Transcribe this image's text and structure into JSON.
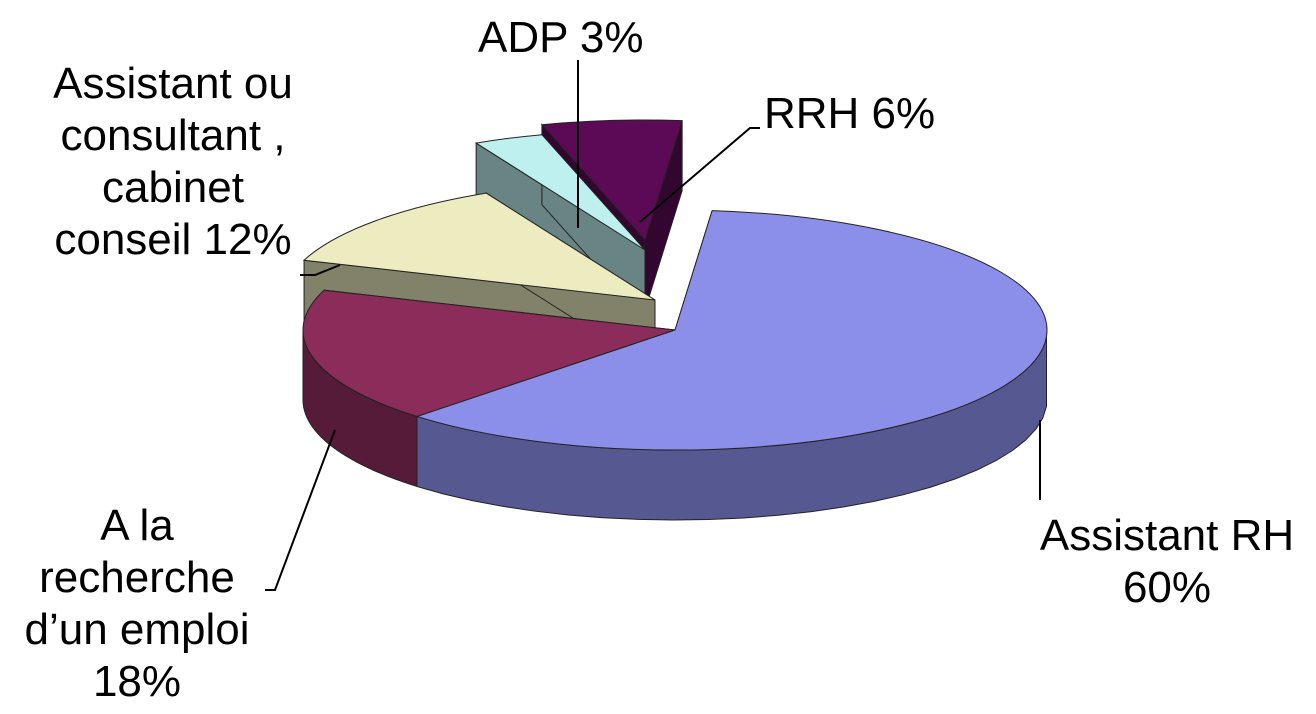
{
  "chart_data": {
    "type": "pie",
    "style": "3d-exploded",
    "slices": [
      {
        "name": "Assistant RH",
        "value": 60,
        "color": "#8B8FEA",
        "label_lines": [
          "Assistant RH",
          "60%"
        ]
      },
      {
        "name": "A la recherche d'un emploi",
        "value": 18,
        "color": "#8B2C5A",
        "label_lines": [
          "A la",
          "recherche",
          "d’un emploi",
          "18%"
        ]
      },
      {
        "name": "Assistant ou consultant , cabinet conseil",
        "value": 12,
        "color": "#EDEBC0",
        "label_lines": [
          "Assistant ou",
          "consultant  ,",
          "cabinet",
          "conseil 12%"
        ]
      },
      {
        "name": "ADP",
        "value": 3,
        "color": "#BFF0F0",
        "label_lines": [
          "ADP 3%"
        ]
      },
      {
        "name": "RRH",
        "value": 6,
        "color": "#5C0A55",
        "label_lines": [
          "RRH 6%"
        ]
      }
    ]
  }
}
